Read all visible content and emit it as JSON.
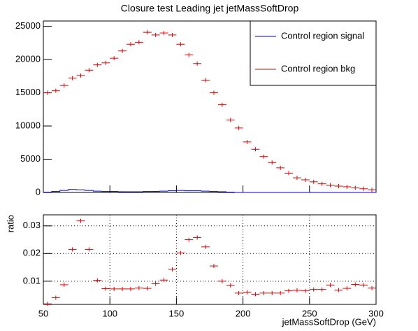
{
  "chart_data": [
    {
      "type": "histogram",
      "title": "Closure test Leading jet jetMassSoftDrop",
      "bins": [
        50,
        56.25,
        62.5,
        68.75,
        75,
        81.25,
        87.5,
        93.75,
        100,
        106.25,
        112.5,
        118.75,
        125,
        131.25,
        137.5,
        143.75,
        150,
        156.25,
        162.5,
        168.75,
        175,
        181.25,
        187.5,
        193.75,
        200,
        206.25,
        212.5,
        218.75,
        225,
        231.25,
        237.5,
        243.75,
        250,
        256.25,
        262.5,
        268.75,
        275,
        281.25,
        287.5,
        293.75,
        300
      ],
      "series": [
        {
          "name": "Control region signal",
          "color": "#0000cc",
          "style": "step",
          "values": [
            50,
            150,
            300,
            450,
            400,
            300,
            200,
            150,
            150,
            100,
            100,
            100,
            150,
            150,
            200,
            250,
            300,
            250,
            250,
            200,
            150,
            100,
            50,
            0,
            0,
            0,
            0,
            0,
            0,
            0,
            0,
            0,
            0,
            0,
            0,
            0,
            0,
            0,
            0,
            0
          ]
        },
        {
          "name": "Control region bkg",
          "color": "#dd0000",
          "style": "errorbar",
          "values": [
            15000,
            15300,
            16100,
            17200,
            17600,
            18400,
            19200,
            19500,
            20200,
            21300,
            22300,
            22600,
            24100,
            23700,
            24000,
            23700,
            22300,
            20700,
            19400,
            16900,
            15000,
            13200,
            10900,
            9700,
            7600,
            6500,
            5400,
            4500,
            3700,
            2900,
            2200,
            1900,
            1600,
            1300,
            1100,
            950,
            850,
            700,
            550,
            400
          ]
        }
      ],
      "xlim": [
        50,
        300
      ],
      "xticks": [
        50,
        100,
        150,
        200,
        250,
        300
      ],
      "ylim": [
        0,
        25800
      ],
      "yticks": [
        0,
        5000,
        10000,
        15000,
        20000,
        25000
      ],
      "legend": "upper right",
      "grid": false
    },
    {
      "type": "histogram",
      "xlabel": "jetMassSoftDrop (GeV)",
      "ylabel": "ratio",
      "bins": [
        50,
        56.25,
        62.5,
        68.75,
        75,
        81.25,
        87.5,
        93.75,
        100,
        106.25,
        112.5,
        118.75,
        125,
        131.25,
        137.5,
        143.75,
        150,
        156.25,
        162.5,
        168.75,
        175,
        181.25,
        187.5,
        193.75,
        200,
        206.25,
        212.5,
        218.75,
        225,
        231.25,
        237.5,
        243.75,
        250,
        256.25,
        262.5,
        268.75,
        275,
        281.25,
        287.5,
        293.75,
        300
      ],
      "values": [
        0.0018,
        0.004,
        0.0087,
        0.0215,
        0.0318,
        0.0215,
        0.0103,
        0.0073,
        0.0072,
        0.0072,
        0.0072,
        0.0075,
        0.0074,
        0.0091,
        0.0104,
        0.0143,
        0.0202,
        0.025,
        0.0258,
        0.0224,
        0.0155,
        0.01,
        0.0085,
        0.0057,
        0.006,
        0.0053,
        0.0057,
        0.0057,
        0.0057,
        0.0065,
        0.0067,
        0.0065,
        0.007,
        0.007,
        0.0086,
        0.0068,
        0.0074,
        0.0088,
        0.0086,
        0.0075
      ],
      "color": "#dd0000",
      "style": "errorbar",
      "xlim": [
        50,
        300
      ],
      "xticks": [
        50,
        100,
        150,
        200,
        250,
        300
      ],
      "ylim": [
        0.0016,
        0.034
      ],
      "yticks": [
        0.01,
        0.02,
        0.03
      ],
      "grid": true
    }
  ]
}
